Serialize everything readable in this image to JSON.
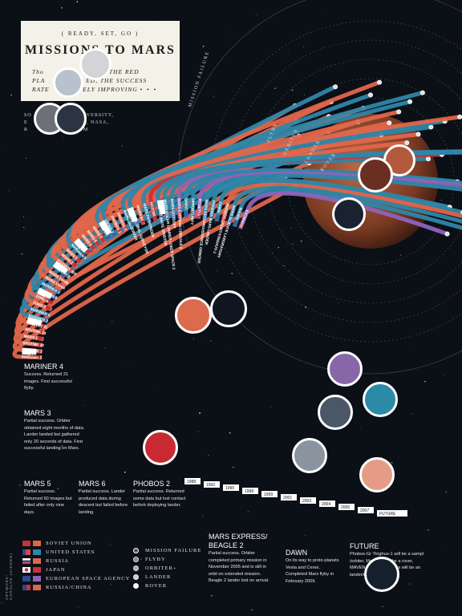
{
  "title_card": {
    "kicker": "( READY, SET, GO )",
    "headline": "MISSIONS TO MARS",
    "deck_line1": "Tho",
    "deck_line1b": "TO THE RED",
    "deck_line2": "PLA",
    "deck_line2b": "ED, THE SUCCESS",
    "deck_line3": "RATE",
    "deck_line3b": "ITELY IMPROVING"
  },
  "source_text": [
    "SO",
    "UNIVERSITY,",
    "E",
    "NCY, NASA,",
    "R",
    "COM"
  ],
  "ring_labels": {
    "mission_failure": "MISSION FAILURE",
    "flyby": "FLYBY",
    "orbiter": "ORBITER",
    "lander": "LANDER",
    "rover": "ROVER"
  },
  "colors": {
    "soviet": "#e0664b",
    "usa": "#2f86a8",
    "russia": "#e0664b",
    "japan": "#c8323a",
    "esa": "#8f63b8",
    "russia_china": "#e0664b",
    "background": "#0b0f16",
    "mars": "#8b4a2e"
  },
  "missions": [
    {
      "name": "MARSNIK 1",
      "agency": "soviet"
    },
    {
      "name": "MARSNIK 2",
      "agency": "soviet"
    },
    {
      "name": "SPUTNIK 22",
      "agency": "soviet"
    },
    {
      "name": "MARS 1",
      "agency": "soviet"
    },
    {
      "name": "SPUTNIK 24",
      "agency": "soviet"
    },
    {
      "name": "KOSMOS 21",
      "agency": "soviet"
    },
    {
      "name": "MARINER 3",
      "agency": "usa"
    },
    {
      "name": "MARINER 4",
      "agency": "usa"
    },
    {
      "name": "ZOND 2",
      "agency": "soviet"
    },
    {
      "name": "ZOND 3",
      "agency": "soviet"
    },
    {
      "name": "MARINER 6",
      "agency": "usa"
    },
    {
      "name": "MARINER 7",
      "agency": "usa"
    },
    {
      "name": "MARS 1969A",
      "agency": "soviet"
    },
    {
      "name": "MARS 1969B",
      "agency": "soviet"
    },
    {
      "name": "MARINER 8",
      "agency": "usa"
    },
    {
      "name": "KOSMOS 419",
      "agency": "soviet"
    },
    {
      "name": "MARS 2",
      "agency": "soviet"
    },
    {
      "name": "MARS 3",
      "agency": "soviet"
    },
    {
      "name": "MARINER 9",
      "agency": "usa"
    },
    {
      "name": "MARS 4",
      "agency": "soviet"
    },
    {
      "name": "MARS 5",
      "agency": "soviet"
    },
    {
      "name": "MARS 6",
      "agency": "soviet"
    },
    {
      "name": "MARS 7",
      "agency": "soviet"
    },
    {
      "name": "VIKING 1",
      "agency": "usa"
    },
    {
      "name": "VIKING 2",
      "agency": "usa"
    },
    {
      "name": "PHOBOS 1",
      "agency": "soviet"
    },
    {
      "name": "PHOBOS 2",
      "agency": "soviet"
    },
    {
      "name": "MARS OBSERVER",
      "agency": "usa"
    },
    {
      "name": "MARS GLOBAL SURVEYOR",
      "agency": "usa"
    },
    {
      "name": "MARS 96",
      "agency": "russia"
    },
    {
      "name": "MARS PATHFINDER",
      "agency": "usa"
    },
    {
      "name": "NOZOMI",
      "agency": "japan"
    },
    {
      "name": "MARS CLIMATE ORBITER",
      "agency": "usa"
    },
    {
      "name": "MARS POLAR LANDER / DEEP SPACE 2",
      "agency": "usa"
    },
    {
      "name": "MARS ODYSSEY",
      "agency": "usa"
    },
    {
      "name": "MARS EXPRESS / BEAGLE 2",
      "agency": "esa"
    },
    {
      "name": "SPIRIT",
      "agency": "usa"
    },
    {
      "name": "OPPORTUNITY",
      "agency": "usa"
    },
    {
      "name": "ROSETTA",
      "agency": "esa"
    },
    {
      "name": "MARS RECONNAISSANCE ORBITER",
      "agency": "usa"
    },
    {
      "name": "PHOENIX MARS LANDER",
      "agency": "usa"
    },
    {
      "name": "DAWN",
      "agency": "usa"
    },
    {
      "name": "PHOBOS-GRUNT/YINGHUO-1",
      "agency": "russia_china"
    },
    {
      "name": "MARS SCIENCE LABORATORY",
      "agency": "usa"
    },
    {
      "name": "MAVEN",
      "agency": "usa"
    },
    {
      "name": "EXOMARS",
      "agency": "esa"
    }
  ],
  "years_left": [
    "1960",
    "1962",
    "1964",
    "1965",
    "1969",
    "1971",
    "1973",
    "1975"
  ],
  "years_bottom": [
    "1988",
    "1992",
    "1996",
    "1998",
    "1999",
    "2001",
    "2003",
    "2004",
    "2005",
    "2007",
    "FUTURE"
  ],
  "notes": {
    "mariner4": {
      "heading": "MARINER 4",
      "body": "Success. Returned 21 images. First successful flyby."
    },
    "mars3": {
      "heading": "MARS 3",
      "body": "Partial success. Orbiter obtained eight months of data. Lander landed but gathered only 20 seconds of data. First successful landing on Mars."
    },
    "mars5": {
      "heading": "MARS 5",
      "body": "Partial success. Returned 60 images but failed after only nine days."
    },
    "mars6": {
      "heading": "MARS 6",
      "body": "Partial success. Lander produced data during descent but failed before landing."
    },
    "phobos2": {
      "heading": "PHOBOS 2",
      "body": "Partial success. Returned some data but lost contact before deploying lander."
    },
    "mars_express": {
      "heading": "MARS EXPRESS/ BEAGLE 2",
      "body": "Partial success. Orbiter completed primary mission in November 2005 and is still in orbit on extended mission. Beagle 2 lander lost on arrival."
    },
    "dawn": {
      "heading": "DAWN",
      "body": "On its way to proto-planets Vesta and Ceres. Completed Mars flyby in February 2009."
    },
    "future": {
      "heading": "FUTURE",
      "body": "Phobos-Gr Yinghuo-1 will be a sampl /orbiter, Mars Scienc be a rover, MAVEN ter, and ExoMars will be an lander/rover."
    }
  },
  "legend": {
    "countries": [
      "SOVIET UNION",
      "UNITED STATES",
      "RUSSIA",
      "JAPAN",
      "EUROPEAN SPACE AGENCY",
      "RUSSIA/CHINA"
    ],
    "outcomes": [
      "MISSION FAILURE",
      "FLYBY",
      "ORBITER",
      "LANDER",
      "ROVER"
    ]
  },
  "credit": "ARTWORK: CAROLYN (HIDDEN)"
}
